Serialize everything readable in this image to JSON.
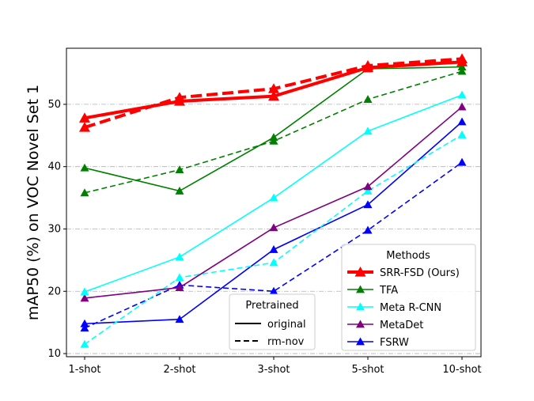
{
  "chart_data": {
    "type": "line",
    "title": "",
    "xlabel": "",
    "ylabel": "mAP50 (%) on VOC Novel Set 1",
    "categories": [
      "1-shot",
      "2-shot",
      "3-shot",
      "5-shot",
      "10-shot"
    ],
    "ylim": [
      9.5,
      59
    ],
    "yticks": [
      10,
      20,
      30,
      40,
      50
    ],
    "grid": "horizontal dash-dot",
    "legends": {
      "methods": {
        "title": "Methods",
        "placement": "lower-right",
        "entries": [
          "SRR-FSD (Ours)",
          "TFA",
          "Meta R-CNN",
          "MetaDet",
          "FSRW"
        ]
      },
      "pretrained": {
        "title": "Pretrained",
        "placement": "lower-center",
        "entries": [
          "original",
          "rm-nov"
        ]
      }
    },
    "series": [
      {
        "name": "SRR-FSD (Ours)",
        "variant": "original",
        "color": "#ff0000",
        "values": [
          47.8,
          50.5,
          51.3,
          55.9,
          56.8
        ]
      },
      {
        "name": "SRR-FSD (Ours)",
        "variant": "rm-nov",
        "color": "#ff0000",
        "values": [
          46.3,
          51.1,
          52.5,
          56.2,
          57.3
        ]
      },
      {
        "name": "TFA",
        "variant": "original",
        "color": "#008000",
        "values": [
          39.8,
          36.1,
          44.7,
          55.7,
          56.0
        ]
      },
      {
        "name": "TFA",
        "variant": "rm-nov",
        "color": "#008000",
        "values": [
          35.8,
          39.5,
          44.1,
          50.8,
          55.3
        ]
      },
      {
        "name": "Meta R-CNN",
        "variant": "original",
        "color": "#00ffff",
        "values": [
          19.9,
          25.5,
          35.0,
          45.7,
          51.5
        ]
      },
      {
        "name": "Meta R-CNN",
        "variant": "rm-nov",
        "color": "#00ffff",
        "values": [
          11.5,
          22.2,
          24.6,
          36.1,
          45.1
        ]
      },
      {
        "name": "MetaDet",
        "variant": "original",
        "color": "#800080",
        "values": [
          18.9,
          20.6,
          30.2,
          36.8,
          49.6
        ]
      },
      {
        "name": "FSRW",
        "variant": "original",
        "color": "#0000ff",
        "values": [
          14.8,
          15.5,
          26.7,
          33.9,
          47.2
        ]
      },
      {
        "name": "FSRW",
        "variant": "rm-nov",
        "color": "#0000ff",
        "values": [
          14.1,
          21.0,
          20.0,
          29.8,
          40.7
        ]
      }
    ]
  }
}
